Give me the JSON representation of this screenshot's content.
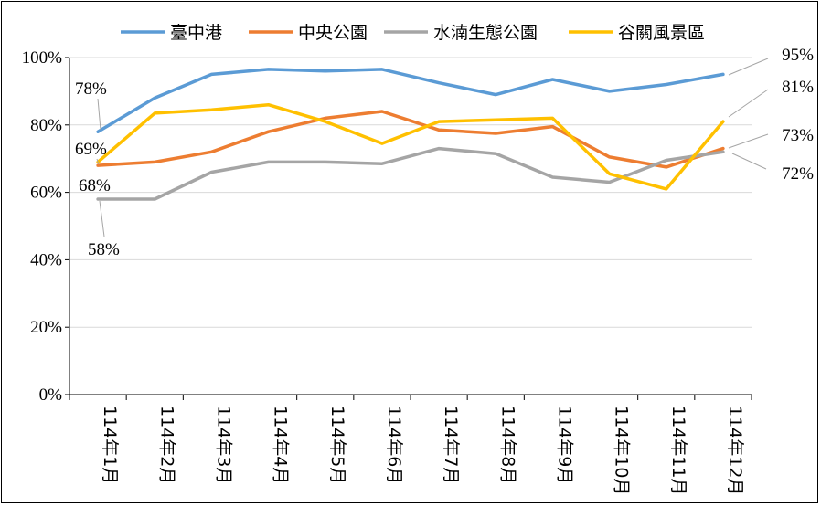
{
  "chart_data": {
    "type": "line",
    "title": "",
    "xlabel": "",
    "ylabel": "",
    "ylim": [
      0,
      100
    ],
    "yticks": [
      0,
      20,
      40,
      60,
      80,
      100
    ],
    "ytick_labels": [
      "0%",
      "20%",
      "40%",
      "60%",
      "80%",
      "100%"
    ],
    "grid": true,
    "legend_position": "top-center",
    "categories": [
      "114年1月",
      "114年2月",
      "114年3月",
      "114年4月",
      "114年5月",
      "114年6月",
      "114年7月",
      "114年8月",
      "114年9月",
      "114年10月",
      "114年11月",
      "114年12月"
    ],
    "series": [
      {
        "name": "臺中港",
        "color": "#5b9bd5",
        "values": [
          78,
          88,
          95,
          96.5,
          96,
          96.5,
          92.5,
          89,
          93.5,
          90,
          92,
          95
        ],
        "data_labels": [
          {
            "index": 0,
            "text": "78%"
          },
          {
            "index": 11,
            "text": "95%"
          }
        ]
      },
      {
        "name": "中央公園",
        "color": "#ed7d31",
        "values": [
          68,
          69,
          72,
          78,
          82,
          84,
          78.5,
          77.5,
          79.5,
          70.5,
          67.5,
          73
        ],
        "data_labels": [
          {
            "index": 0,
            "text": "68%"
          },
          {
            "index": 11,
            "text": "73%"
          }
        ]
      },
      {
        "name": "水湳生態公園",
        "color": "#a5a5a5",
        "values": [
          58,
          58,
          66,
          69,
          69,
          68.5,
          73,
          71.5,
          64.5,
          63,
          69.5,
          72
        ],
        "data_labels": [
          {
            "index": 0,
            "text": "58%"
          },
          {
            "index": 11,
            "text": "72%"
          }
        ]
      },
      {
        "name": "谷關風景區",
        "color": "#ffc000",
        "values": [
          69,
          83.5,
          84.5,
          86,
          81,
          74.5,
          81,
          81.5,
          82,
          65.5,
          61,
          81
        ],
        "data_labels": [
          {
            "index": 0,
            "text": "69%"
          },
          {
            "index": 11,
            "text": "81%"
          }
        ]
      }
    ]
  }
}
